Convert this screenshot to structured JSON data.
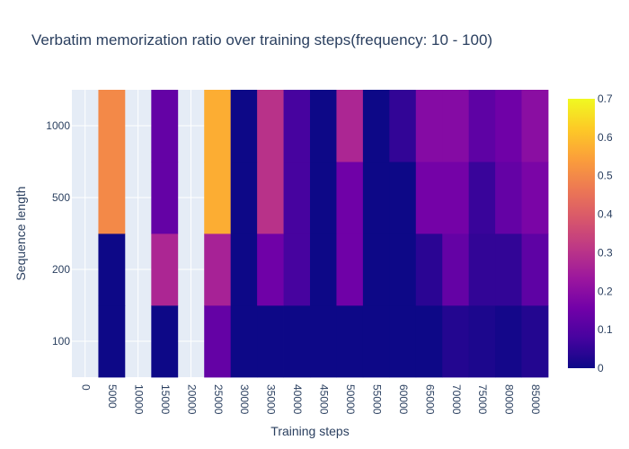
{
  "chart_data": {
    "type": "heatmap",
    "title": "Verbatim memorization ratio over training steps(frequency: 10 - 100)",
    "xlabel": "Training steps",
    "ylabel": "Sequence length",
    "x": [
      "0",
      "5000",
      "10000",
      "15000",
      "20000",
      "25000",
      "30000",
      "35000",
      "40000",
      "45000",
      "50000",
      "55000",
      "60000",
      "65000",
      "70000",
      "75000",
      "80000",
      "85000"
    ],
    "y": [
      "100",
      "200",
      "500",
      "1000"
    ],
    "z": [
      [
        null,
        0.0,
        null,
        0.0,
        null,
        0.13,
        0.0,
        0.0,
        0.0,
        0.0,
        0.0,
        0.0,
        0.0,
        0.0,
        0.03,
        0.02,
        0.01,
        0.03
      ],
      [
        null,
        0.0,
        null,
        0.27,
        null,
        0.26,
        0.0,
        0.15,
        0.08,
        0.0,
        0.15,
        0.0,
        0.0,
        0.04,
        0.13,
        0.05,
        0.05,
        0.12
      ],
      [
        null,
        0.5,
        null,
        0.13,
        null,
        0.57,
        0.0,
        0.3,
        0.08,
        0.0,
        0.15,
        0.0,
        0.0,
        0.16,
        0.16,
        0.06,
        0.13,
        0.17
      ],
      [
        null,
        0.5,
        null,
        0.13,
        null,
        0.57,
        0.0,
        0.3,
        0.08,
        0.0,
        0.27,
        0.0,
        0.05,
        0.19,
        0.19,
        0.12,
        0.15,
        0.2
      ]
    ],
    "zmin": 0,
    "zmax": 0.7,
    "colorbar_ticks": [
      "0",
      "0.1",
      "0.2",
      "0.3",
      "0.4",
      "0.5",
      "0.6",
      "0.7"
    ],
    "colorscale": "Plasma",
    "grid": true,
    "plot_background": "#e5ecf6"
  }
}
